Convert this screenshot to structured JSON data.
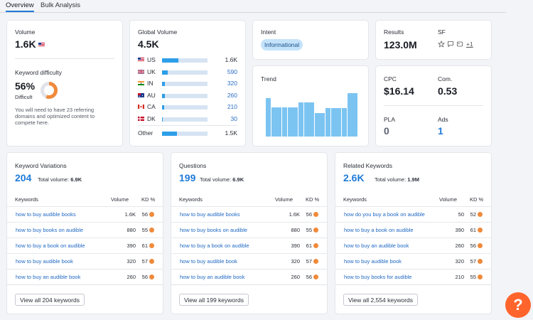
{
  "tabs": [
    "Overview",
    "Bulk Analysis"
  ],
  "volume": {
    "label": "Volume",
    "value": "1.6K"
  },
  "kd": {
    "label": "Keyword difficulty",
    "value": "56%",
    "level": "Difficult",
    "percent": 56,
    "note_line1": "You will need to have 23 referring",
    "note_line2": "domains and optimized content to",
    "note_line3": "compete here."
  },
  "global": {
    "label": "Global Volume",
    "value": "4.5K",
    "rows": [
      {
        "code": "US",
        "value": "1.6K",
        "fill": 0.36
      },
      {
        "code": "UK",
        "value": "590",
        "fill": 0.13
      },
      {
        "code": "IN",
        "value": "320",
        "fill": 0.07
      },
      {
        "code": "AU",
        "value": "260",
        "fill": 0.06
      },
      {
        "code": "CA",
        "value": "210",
        "fill": 0.05
      },
      {
        "code": "DK",
        "value": "30",
        "fill": 0.01
      }
    ],
    "other": {
      "label": "Other",
      "value": "1.5K",
      "fill": 0.33
    }
  },
  "intent": {
    "label": "Intent",
    "value": "Informational"
  },
  "trend": {
    "label": "Trend",
    "values": [
      0.82,
      0.62,
      0.62,
      0.62,
      0.62,
      0.62,
      0.73,
      0.73,
      0.73,
      0.5,
      0.5,
      0.6,
      0.6,
      0.6,
      0.6,
      0.92,
      0.92
    ]
  },
  "results": {
    "label": "Results",
    "value": "123.0M"
  },
  "sf": {
    "label": "SF",
    "more": "+1"
  },
  "cpc": {
    "label": "CPC",
    "value": "$16.14"
  },
  "com": {
    "label": "Com.",
    "value": "0.53"
  },
  "pla": {
    "label": "PLA",
    "value": "0"
  },
  "ads": {
    "label": "Ads",
    "value": "1"
  },
  "colheads": {
    "keywords": "Keywords",
    "volume": "Volume",
    "kd": "KD %"
  },
  "variations": {
    "title": "Keyword Variations",
    "count": "204",
    "total_label": "Total volume:",
    "total": "6.9K",
    "button": "View all 204 keywords",
    "rows": [
      {
        "kw": "how to buy audible books",
        "vol": "1.6K",
        "kd": "56"
      },
      {
        "kw": "how to buy books on audible",
        "vol": "880",
        "kd": "55"
      },
      {
        "kw": "how to buy a book on audible",
        "vol": "390",
        "kd": "61"
      },
      {
        "kw": "how to buy audible book",
        "vol": "320",
        "kd": "57"
      },
      {
        "kw": "how to buy an audible book",
        "vol": "260",
        "kd": "56"
      }
    ]
  },
  "questions": {
    "title": "Questions",
    "count": "199",
    "total_label": "Total volume:",
    "total": "6.9K",
    "button": "View all 199 keywords",
    "rows": [
      {
        "kw": "how to buy audible books",
        "vol": "1.6K",
        "kd": "56"
      },
      {
        "kw": "how to buy books on audible",
        "vol": "880",
        "kd": "55"
      },
      {
        "kw": "how to buy a book on audible",
        "vol": "390",
        "kd": "61"
      },
      {
        "kw": "how to buy audible book",
        "vol": "320",
        "kd": "57"
      },
      {
        "kw": "how to buy an audible book",
        "vol": "260",
        "kd": "56"
      }
    ]
  },
  "related": {
    "title": "Related Keywords",
    "count": "2.6K",
    "total_label": "Total volume:",
    "total": "1.9M",
    "button": "View all 2,554 keywords",
    "rows": [
      {
        "kw": "how do you buy a book on audible",
        "vol": "50",
        "kd": "52"
      },
      {
        "kw": "how to buy a book on audible",
        "vol": "390",
        "kd": "61"
      },
      {
        "kw": "how to buy an audible book",
        "vol": "260",
        "kd": "56"
      },
      {
        "kw": "how to buy audible book",
        "vol": "320",
        "kd": "57"
      },
      {
        "kw": "how to buy books for audible",
        "vol": "210",
        "kd": "55"
      }
    ]
  },
  "help": "?",
  "colors": {
    "accent": "#1f7bd8",
    "bar": "#7bc4f2",
    "kd_dot": "#f08a3a",
    "help": "#ff642d"
  }
}
